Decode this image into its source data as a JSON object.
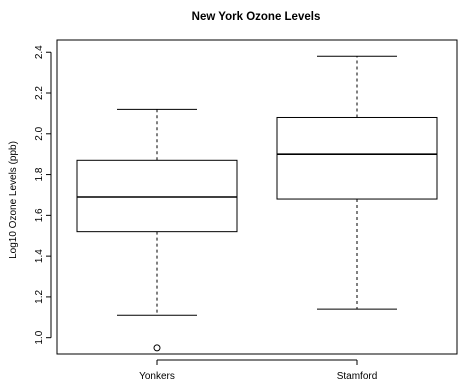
{
  "chart_data": {
    "type": "boxplot",
    "title": "New York Ozone Levels",
    "ylabel": "Log10 Ozone Levels (ppb)",
    "xlabel": "",
    "ylim": [
      0.92,
      2.46
    ],
    "yticks": [
      1.0,
      1.2,
      1.4,
      1.6,
      1.8,
      2.0,
      2.2,
      2.4
    ],
    "ytick_labels": [
      "1.0",
      "1.2",
      "1.4",
      "1.6",
      "1.8",
      "2.0",
      "2.2",
      "2.4"
    ],
    "categories": [
      "Yonkers",
      "Stamford"
    ],
    "boxes": [
      {
        "name": "Yonkers",
        "whisker_low": 1.11,
        "q1": 1.52,
        "median": 1.69,
        "q3": 1.87,
        "whisker_high": 2.12,
        "outliers": [
          0.95
        ]
      },
      {
        "name": "Stamford",
        "whisker_low": 1.14,
        "q1": 1.68,
        "median": 1.9,
        "q3": 2.08,
        "whisker_high": 2.38,
        "outliers": []
      }
    ],
    "grid": false,
    "legend": "none"
  }
}
